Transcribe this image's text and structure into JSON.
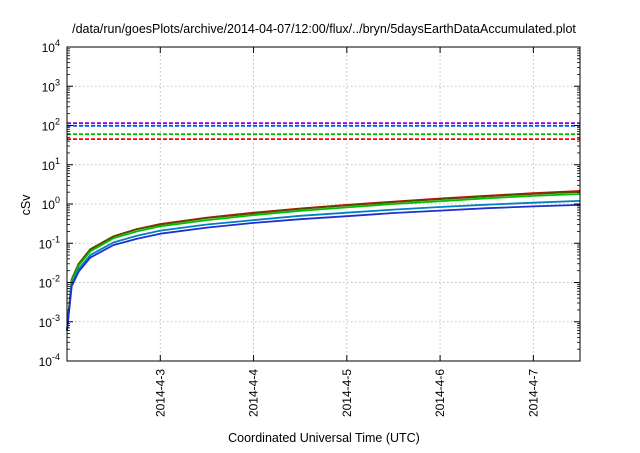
{
  "chart_data": {
    "type": "line",
    "title": "/data/run/goesPlots/archive/2014-04-07/12:00/flux/../bryn/5daysEarthDataAccumulated.plot",
    "xlabel": "Coordinated Universal Time (UTC)",
    "ylabel": "cSv",
    "xscale": "time",
    "yscale": "log",
    "xlim": [
      "2014-04-02T00:00",
      "2014-04-07T12:00"
    ],
    "ylim": [
      0.0001,
      10000
    ],
    "grid": true,
    "x_ticks": [
      {
        "label": "2014-4-3",
        "at": "2014-04-03T00:00"
      },
      {
        "label": "2014-4-4",
        "at": "2014-04-04T00:00"
      },
      {
        "label": "2014-4-5",
        "at": "2014-04-05T00:00"
      },
      {
        "label": "2014-4-6",
        "at": "2014-04-06T00:00"
      },
      {
        "label": "2014-4-7",
        "at": "2014-04-07T00:00"
      }
    ],
    "y_ticks": [
      {
        "base": "10",
        "exp": "-4",
        "value": 0.0001
      },
      {
        "base": "10",
        "exp": "-3",
        "value": 0.001
      },
      {
        "base": "10",
        "exp": "-2",
        "value": 0.01
      },
      {
        "base": "10",
        "exp": "-1",
        "value": 0.1
      },
      {
        "base": "10",
        "exp": "0",
        "value": 1
      },
      {
        "base": "10",
        "exp": "1",
        "value": 10
      },
      {
        "base": "10",
        "exp": "2",
        "value": 100
      },
      {
        "base": "10",
        "exp": "3",
        "value": 1000
      },
      {
        "base": "10",
        "exp": "4",
        "value": 10000
      }
    ],
    "x": [
      "2014-04-02T00:00",
      "2014-04-02T01:12",
      "2014-04-02T03:00",
      "2014-04-02T06:00",
      "2014-04-02T12:00",
      "2014-04-02T18:00",
      "2014-04-03T00:00",
      "2014-04-03T12:00",
      "2014-04-04T00:00",
      "2014-04-04T12:00",
      "2014-04-05T00:00",
      "2014-04-05T12:00",
      "2014-04-06T00:00",
      "2014-04-06T12:00",
      "2014-04-07T00:00",
      "2014-04-07T12:00"
    ],
    "series": [
      {
        "color": "#d00000",
        "values": [
          0.0006,
          0.012,
          0.03,
          0.07,
          0.15,
          0.23,
          0.31,
          0.45,
          0.6,
          0.77,
          0.95,
          1.15,
          1.38,
          1.62,
          1.88,
          2.15
        ],
        "style": "solid"
      },
      {
        "color": "#5a4a00",
        "values": [
          0.0006,
          0.012,
          0.03,
          0.07,
          0.15,
          0.23,
          0.3,
          0.44,
          0.58,
          0.75,
          0.92,
          1.12,
          1.33,
          1.57,
          1.82,
          2.05
        ],
        "style": "solid"
      },
      {
        "color": "#00c000",
        "values": [
          0.0006,
          0.011,
          0.027,
          0.062,
          0.135,
          0.2,
          0.27,
          0.39,
          0.52,
          0.67,
          0.82,
          1.0,
          1.18,
          1.4,
          1.62,
          1.8
        ],
        "style": "solid"
      },
      {
        "color": "#0080c0",
        "values": [
          0.0006,
          0.009,
          0.022,
          0.05,
          0.105,
          0.155,
          0.21,
          0.3,
          0.39,
          0.5,
          0.6,
          0.72,
          0.84,
          0.96,
          1.08,
          1.2
        ],
        "style": "solid"
      },
      {
        "color": "#2030d0",
        "values": [
          0.0006,
          0.008,
          0.019,
          0.043,
          0.09,
          0.13,
          0.175,
          0.25,
          0.33,
          0.41,
          0.49,
          0.59,
          0.68,
          0.78,
          0.87,
          0.95
        ],
        "style": "solid"
      },
      {
        "color": "#9400d3",
        "values": [
          115,
          115,
          115,
          115,
          115,
          115,
          115,
          115,
          115,
          115,
          115,
          115,
          115,
          115,
          115,
          115
        ],
        "style": "dashed"
      },
      {
        "color": "#0050ff",
        "values": [
          98,
          98,
          98,
          98,
          98,
          98,
          98,
          98,
          98,
          98,
          98,
          98,
          98,
          98,
          98,
          98
        ],
        "style": "dashed"
      },
      {
        "color": "#00c000",
        "values": [
          60,
          60,
          60,
          60,
          60,
          60,
          60,
          60,
          60,
          60,
          60,
          60,
          60,
          60,
          60,
          60
        ],
        "style": "dashed"
      },
      {
        "color": "#ff0000",
        "values": [
          45,
          45,
          45,
          45,
          45,
          45,
          45,
          45,
          45,
          45,
          45,
          45,
          45,
          45,
          45,
          45
        ],
        "style": "dashed"
      }
    ]
  }
}
